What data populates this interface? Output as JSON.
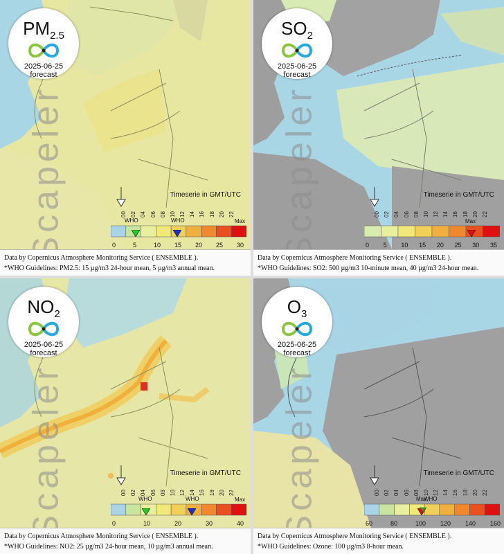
{
  "panels": [
    {
      "pollutant": "PM",
      "sub": "2.5",
      "date": "2025-06-25",
      "forecast": "forecast",
      "brand": "Scapeler",
      "timeserie": "Timeserie in GMT/UTC",
      "hours": [
        "00",
        "02",
        "04",
        "06",
        "08",
        "10",
        "12",
        "14",
        "16",
        "18",
        "20",
        "22"
      ],
      "scale": [
        "0",
        "5",
        "10",
        "15",
        "20",
        "25",
        "30"
      ],
      "who": [
        "WHO",
        "WHO"
      ],
      "max": "Max",
      "colors": [
        "#a8d4e6",
        "#c8e4a0",
        "#e8f0a0",
        "#f0e878",
        "#f0d058",
        "#f0b040",
        "#f08830",
        "#e85020",
        "#e01010"
      ],
      "footer1": "Data by Copernicus Atmosphere Monitoring Service ( ENSEMBLE ).",
      "footer2": "*WHO Guidelines: PM2.5: 15 µg/m3 24-hour mean, 5 µg/m3 annual mean."
    },
    {
      "pollutant": "SO",
      "sub": "2",
      "date": "2025-06-25",
      "forecast": "forecast",
      "brand": "Scapeler",
      "timeserie": "Timeserie in GMT/UTC",
      "hours": [
        "00",
        "02",
        "04",
        "06",
        "08",
        "10",
        "12",
        "14",
        "16",
        "18",
        "20",
        "22"
      ],
      "scale": [
        "0",
        "5",
        "10",
        "15",
        "20",
        "25",
        "30",
        "35"
      ],
      "who": [],
      "max": "Max",
      "colors": [
        "#d8ecb0",
        "#e8f0a0",
        "#f0e878",
        "#f0d058",
        "#f0b040",
        "#f08830",
        "#e85020",
        "#e01010"
      ],
      "footer1": "Data by Copernicus Atmosphere Monitoring Service ( ENSEMBLE ).",
      "footer2": "*WHO Guidelines: SO2: 500 µg/m3 10-minute mean, 40 µg/m3 24-hour mean."
    },
    {
      "pollutant": "NO",
      "sub": "2",
      "date": "2025-06-25",
      "forecast": "forecast",
      "brand": "Scapeler",
      "timeserie": "Timeserie in GMT/UTC",
      "hours": [
        "00",
        "02",
        "04",
        "06",
        "08",
        "10",
        "12",
        "14",
        "16",
        "18",
        "20",
        "22"
      ],
      "scale": [
        "0",
        "10",
        "20",
        "30",
        "40"
      ],
      "who": [
        "WHO",
        "WHO"
      ],
      "max": "Max",
      "colors": [
        "#a8d4e6",
        "#c8e4a0",
        "#e8f0a0",
        "#f0e878",
        "#f0d058",
        "#f0b040",
        "#f08830",
        "#e85020",
        "#e01010"
      ],
      "footer1": "Data by Copernicus Atmosphere Monitoring Service ( ENSEMBLE ).",
      "footer2": "*WHO Guidelines: NO2: 25 µg/m3 24-hour mean, 10 µg/m3 annual mean."
    },
    {
      "pollutant": "O",
      "sub": "3",
      "date": "2025-06-25",
      "forecast": "forecast",
      "brand": "Scapeler",
      "timeserie": "Timeserie in GMT/UTC",
      "hours": [
        "00",
        "02",
        "04",
        "06",
        "08",
        "10",
        "12",
        "14",
        "16",
        "18",
        "20",
        "22"
      ],
      "scale": [
        "60",
        "80",
        "100",
        "120",
        "140",
        "160"
      ],
      "who": [
        "Max",
        "WHO"
      ],
      "max": "",
      "colors": [
        "#a8d4e6",
        "#c8e4a0",
        "#e8f0a0",
        "#f0e878",
        "#f0d058",
        "#f0b040",
        "#f08830",
        "#e85020",
        "#e01010"
      ],
      "footer1": "Data by Copernicus Atmosphere Monitoring Service ( ENSEMBLE ).",
      "footer2": "*WHO Guidelines: Ozone: 100 µg/m3 8-hour mean."
    }
  ],
  "colors": {
    "sea": "#a9d6e5",
    "land_pm": "#e8e8a4",
    "land_so": "#a0a0a0",
    "border": "#7a7a4a"
  }
}
